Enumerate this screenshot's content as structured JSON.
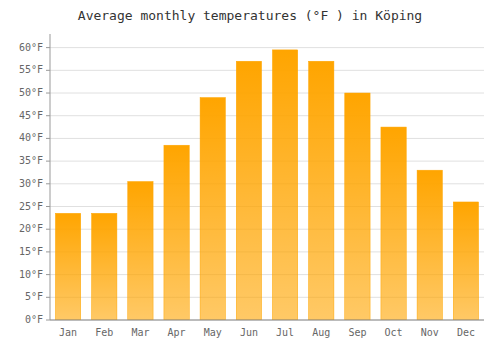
{
  "chart_data": {
    "type": "bar",
    "title": "Average monthly temperatures (°F ) in Köping",
    "categories": [
      "Jan",
      "Feb",
      "Mar",
      "Apr",
      "May",
      "Jun",
      "Jul",
      "Aug",
      "Sep",
      "Oct",
      "Nov",
      "Dec"
    ],
    "values": [
      23.5,
      23.5,
      30.5,
      38.5,
      49.0,
      57.0,
      59.5,
      57.0,
      50.0,
      42.5,
      33.0,
      26.0
    ],
    "color": "#FFA500",
    "ylim": [
      0,
      63
    ],
    "yticks": [
      {
        "value": 0,
        "label": "0°F"
      },
      {
        "value": 5,
        "label": "5°F"
      },
      {
        "value": 10,
        "label": "10°F"
      },
      {
        "value": 15,
        "label": "15°F"
      },
      {
        "value": 20,
        "label": "20°F"
      },
      {
        "value": 25,
        "label": "25°F"
      },
      {
        "value": 30,
        "label": "30°F"
      },
      {
        "value": 35,
        "label": "35°F"
      },
      {
        "value": 40,
        "label": "40°F"
      },
      {
        "value": 45,
        "label": "45°F"
      },
      {
        "value": 50,
        "label": "50°F"
      },
      {
        "value": 55,
        "label": "55°F"
      },
      {
        "value": 60,
        "label": "60°F"
      }
    ],
    "grid": true
  }
}
